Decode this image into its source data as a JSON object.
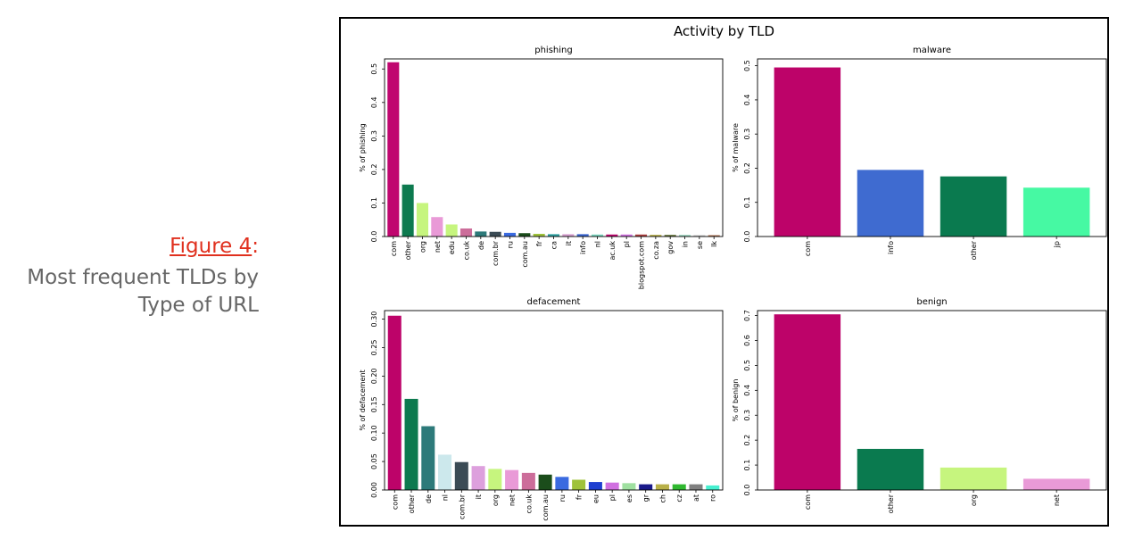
{
  "caption": {
    "figure_label": "Figure 4",
    "colon": ":",
    "line1": "Most frequent TLDs by",
    "line2": "Type of URL"
  },
  "chart_data": {
    "title": "Activity by TLD",
    "subplots": [
      {
        "type": "bar",
        "title": "phishing",
        "ylabel": "% of phishing",
        "ylim": [
          0,
          0.53
        ],
        "yticks": [
          0.0,
          0.1,
          0.2,
          0.3,
          0.4,
          0.5
        ],
        "ytick_labels": [
          "0.0",
          "0.1",
          "0.2",
          "0.3",
          "0.4",
          "0.5"
        ],
        "categories": [
          "com",
          "other",
          "org",
          "net",
          "edu",
          "co.uk",
          "de",
          "com.br",
          "ru",
          "com.au",
          "fr",
          "ca",
          "it",
          "info",
          "nl",
          "ac.uk",
          "pl",
          "blogspot.com",
          "co.za",
          "gov",
          "in",
          "se",
          "lk"
        ],
        "values": [
          0.52,
          0.155,
          0.1,
          0.058,
          0.036,
          0.024,
          0.015,
          0.014,
          0.011,
          0.01,
          0.008,
          0.007,
          0.007,
          0.007,
          0.006,
          0.006,
          0.006,
          0.006,
          0.005,
          0.005,
          0.005,
          0.004,
          0.004
        ],
        "colors": [
          "#c0066f",
          "#0d7a4f",
          "#c6f57e",
          "#e99ad7",
          "#c6f57e",
          "#cc6d9a",
          "#2d7a7a",
          "#3b4b55",
          "#3a6ae0",
          "#1b4d1b",
          "#9fc23a",
          "#2fa0a0",
          "#d8a0d0",
          "#3a66d0",
          "#7dd8c0",
          "#c0066f",
          "#d070e0",
          "#b04040",
          "#b8b048",
          "#6a7a40",
          "#9fd8c0",
          "#c8c8c8",
          "#b07050"
        ],
        "grid": false
      },
      {
        "type": "bar",
        "title": "malware",
        "ylabel": "% of malware",
        "ylim": [
          0,
          0.52
        ],
        "yticks": [
          0.0,
          0.1,
          0.2,
          0.3,
          0.4,
          0.5
        ],
        "ytick_labels": [
          "0.0",
          "0.1",
          "0.2",
          "0.3",
          "0.4",
          "0.5"
        ],
        "categories": [
          "com",
          "info",
          "other",
          "jp"
        ],
        "values": [
          0.495,
          0.195,
          0.176,
          0.143
        ],
        "colors": [
          "#bd0369",
          "#3f6bd0",
          "#0a7a4f",
          "#46f9a3"
        ],
        "grid": false
      },
      {
        "type": "bar",
        "title": "defacement",
        "ylabel": "% of defacement",
        "ylim": [
          0,
          0.315
        ],
        "yticks": [
          0.0,
          0.05,
          0.1,
          0.15,
          0.2,
          0.25,
          0.3
        ],
        "ytick_labels": [
          "0.00",
          "0.05",
          "0.10",
          "0.15",
          "0.20",
          "0.25",
          "0.30"
        ],
        "categories": [
          "com",
          "other",
          "de",
          "nl",
          "com.br",
          "it",
          "org",
          "net",
          "co.uk",
          "com.au",
          "ru",
          "fr",
          "eu",
          "pl",
          "es",
          "gr",
          "ch",
          "cz",
          "at",
          "ro"
        ],
        "values": [
          0.306,
          0.16,
          0.112,
          0.062,
          0.049,
          0.042,
          0.037,
          0.035,
          0.03,
          0.027,
          0.023,
          0.018,
          0.014,
          0.013,
          0.012,
          0.01,
          0.01,
          0.01,
          0.01,
          0.008
        ],
        "colors": [
          "#bd0369",
          "#0d7a4f",
          "#2d7a7a",
          "#cce8ec",
          "#3b4b55",
          "#dda0dd",
          "#c6f57e",
          "#e99ad7",
          "#cc6d9a",
          "#1b4d1b",
          "#3a6ae0",
          "#9fc23a",
          "#1f3fd0",
          "#d070e0",
          "#9fe0a0",
          "#1a1a8a",
          "#b8b048",
          "#2fb82f",
          "#808080",
          "#46f0d0"
        ],
        "grid": false
      },
      {
        "type": "bar",
        "title": "benign",
        "ylabel": "% of benign",
        "ylim": [
          0,
          0.72
        ],
        "yticks": [
          0.0,
          0.1,
          0.2,
          0.3,
          0.4,
          0.5,
          0.6,
          0.7
        ],
        "ytick_labels": [
          "0.0",
          "0.1",
          "0.2",
          "0.3",
          "0.4",
          "0.5",
          "0.6",
          "0.7"
        ],
        "categories": [
          "com",
          "other",
          "org",
          "net"
        ],
        "values": [
          0.705,
          0.165,
          0.09,
          0.045
        ],
        "colors": [
          "#bd0369",
          "#0a7a4f",
          "#c6f57e",
          "#e99ad7"
        ],
        "grid": false
      }
    ]
  }
}
